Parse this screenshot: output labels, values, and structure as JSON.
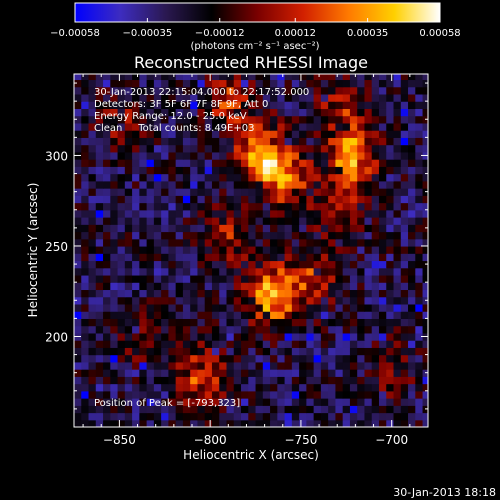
{
  "chart_data": {
    "type": "heatmap",
    "title": "Reconstructed RHESSI Image",
    "xlabel": "Heliocentric X (arcsec)",
    "ylabel": "Heliocentric Y (arcsec)",
    "xlim": [
      -875,
      -680
    ],
    "ylim": [
      150,
      345
    ],
    "xticks": [
      -850,
      -800,
      -750,
      -700
    ],
    "yticks": [
      200,
      250,
      300
    ],
    "xtick_labels": [
      "−850",
      "−800",
      "−750",
      "−700"
    ],
    "ytick_labels": [
      "200",
      "250",
      "300"
    ],
    "colorbar": {
      "min": -0.00058,
      "max": 0.00058,
      "ticks": [
        -0.00058,
        -0.00035,
        -0.00012,
        0.00012,
        0.00035,
        0.00058
      ],
      "tick_labels": [
        "−0.00058",
        "−0.00035",
        "−0.00012",
        "0.00012",
        "0.00035",
        "0.00058"
      ],
      "units_label": "(photons cm⁻² s⁻¹ asec⁻²)",
      "colors": [
        "#0000ff",
        "#3d2cbf",
        "#2a1850",
        "#000000",
        "#7a0000",
        "#d22000",
        "#ff7a00",
        "#ffd000",
        "#ffffff"
      ]
    },
    "annotations": [
      "30-Jan-2013 22:15:04.000 to 22:17:52.000",
      "Detectors: 3F 5F 6F 7F 8F 9F, Att 0",
      "Energy Range: 12.0 - 25.0 keV",
      "Clean     Total counts: 8.49E+03"
    ],
    "peak_label": "Position of Peak = [-793,323]",
    "peak_position": [
      -793,
      323
    ],
    "hot_regions": [
      {
        "x": -772,
        "y": 301,
        "amp": 1.0
      },
      {
        "x": -758,
        "y": 288,
        "amp": 0.7
      },
      {
        "x": -766,
        "y": 223,
        "amp": 1.0
      },
      {
        "x": -744,
        "y": 231,
        "amp": 0.55
      },
      {
        "x": -805,
        "y": 178,
        "amp": 0.65
      },
      {
        "x": -722,
        "y": 300,
        "amp": 0.9
      },
      {
        "x": -730,
        "y": 272,
        "amp": 0.5
      },
      {
        "x": -790,
        "y": 330,
        "amp": 0.55
      },
      {
        "x": -728,
        "y": 328,
        "amp": 0.45
      },
      {
        "x": -790,
        "y": 255,
        "amp": 0.45
      },
      {
        "x": -850,
        "y": 320,
        "amp": 0.35
      },
      {
        "x": -700,
        "y": 182,
        "amp": 0.35
      },
      {
        "x": -840,
        "y": 202,
        "amp": 0.3
      }
    ]
  },
  "footer": {
    "timestamp": "30-Jan-2013 18:18"
  }
}
